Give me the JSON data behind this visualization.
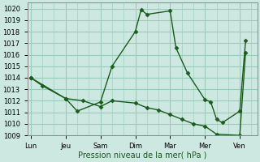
{
  "xlabel": "Pression niveau de la mer( hPa )",
  "background_color": "#cce8e0",
  "grid_color": "#99ccbb",
  "line_color": "#1a5c1a",
  "ylim": [
    1009,
    1020.5
  ],
  "yticks": [
    1009,
    1010,
    1011,
    1012,
    1013,
    1014,
    1015,
    1016,
    1017,
    1018,
    1019,
    1020
  ],
  "xtick_labels": [
    "Lun",
    "Jeu",
    "Sam",
    "Dim",
    "Mar",
    "Mer",
    "Ven"
  ],
  "xtick_positions": [
    0,
    3,
    6,
    9,
    12,
    15,
    18
  ],
  "xlim": [
    -0.3,
    19.5
  ],
  "series1_x": [
    0,
    1,
    3,
    4,
    6,
    7,
    9,
    9.5,
    10,
    12,
    12.5,
    13.5,
    15,
    15.5,
    16,
    16.5,
    18,
    18.5
  ],
  "series1_y": [
    1014.0,
    1013.3,
    1012.2,
    1011.1,
    1011.9,
    1015.0,
    1018.0,
    1019.9,
    1019.5,
    1019.8,
    1016.6,
    1014.4,
    1012.1,
    1011.9,
    1010.4,
    1010.1,
    1011.1,
    1017.2
  ],
  "series2_x": [
    0,
    3,
    4.5,
    6,
    7,
    9,
    10,
    11,
    12,
    13,
    14,
    15,
    16,
    18,
    18.5
  ],
  "series2_y": [
    1014.0,
    1012.2,
    1012.0,
    1011.5,
    1012.0,
    1011.8,
    1011.4,
    1011.2,
    1010.8,
    1010.4,
    1010.0,
    1009.8,
    1009.1,
    1009.0,
    1016.2
  ],
  "marker": "D",
  "marker_size": 2.5,
  "linewidth": 1.0
}
